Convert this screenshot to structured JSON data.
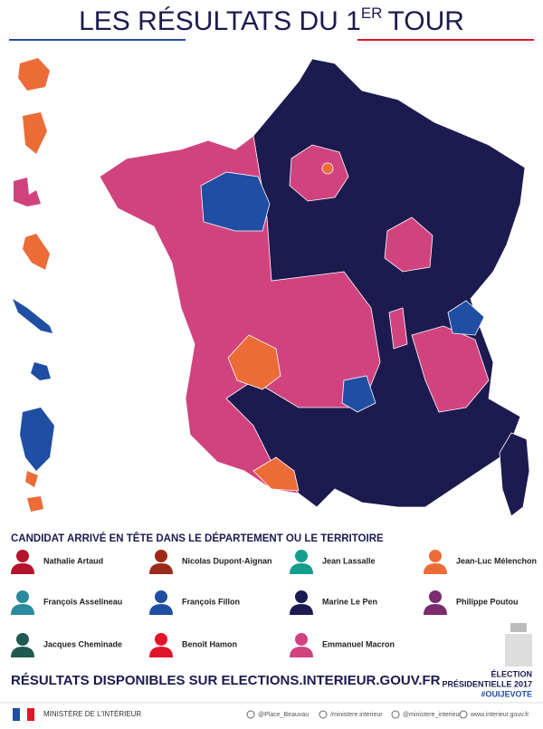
{
  "header": {
    "title_main": "LES RÉSULTATS DU 1",
    "title_sup": "ER",
    "title_end": "TOUR"
  },
  "legend": {
    "heading": "CANDIDAT ARRIVÉ EN TÊTE DANS LE DÉPARTEMENT OU LE TERRITOIRE",
    "candidates": [
      {
        "name": "Nathalie Artaud",
        "color": "#b5132b"
      },
      {
        "name": "Nicolas Dupont-Aignan",
        "color": "#9c2a1a"
      },
      {
        "name": "Jean Lassalle",
        "color": "#159e8e"
      },
      {
        "name": "Jean-Luc Mélenchon",
        "color": "#ec6c37"
      },
      {
        "name": "François Asselineau",
        "color": "#2b8aa0"
      },
      {
        "name": "François Fillon",
        "color": "#1f4ea3"
      },
      {
        "name": "Marine Le Pen",
        "color": "#1c1a4f"
      },
      {
        "name": "Philippe Poutou",
        "color": "#7a2c6e"
      },
      {
        "name": "Jacques Cheminade",
        "color": "#1f5a50"
      },
      {
        "name": "Benoît Hamon",
        "color": "#e3132a"
      },
      {
        "name": "Emmanuel Macron",
        "color": "#d1437f"
      }
    ]
  },
  "footer": {
    "results": "RÉSULTATS DISPONIBLES SUR ELECTIONS.INTERIEUR.GOUV.FR",
    "election": "ÉLECTION",
    "presidential": "PRÉSIDENTIELLE 2017",
    "hashtag": "#OUIJEVOTE",
    "ministry": "MINISTÈRE DE L'INTÉRIEUR",
    "social": [
      "@Place_Beauvau",
      "/ministere.interieur",
      "@ministere_interieur",
      "www.interieur.gouv.fr"
    ]
  }
}
